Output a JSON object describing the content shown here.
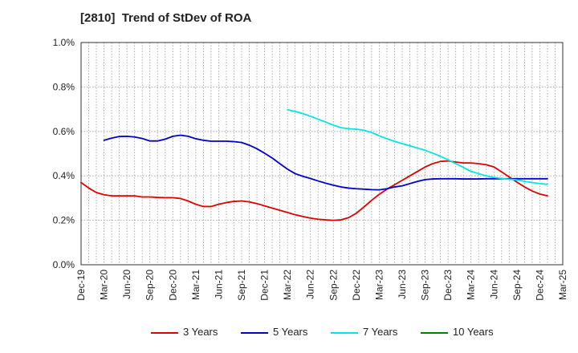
{
  "chart_data": {
    "type": "line",
    "title": "[2810]  Trend of StDev of ROA",
    "xlabel": "",
    "ylabel": "",
    "ylim": [
      0,
      1.0
    ],
    "y_ticks": [
      "0.0%",
      "0.2%",
      "0.4%",
      "0.6%",
      "0.8%",
      "1.0%"
    ],
    "x_ticks": [
      "Dec-19",
      "Mar-20",
      "Jun-20",
      "Sep-20",
      "Dec-20",
      "Mar-21",
      "Jun-21",
      "Sep-21",
      "Dec-21",
      "Mar-22",
      "Jun-22",
      "Sep-22",
      "Dec-22",
      "Mar-23",
      "Jun-23",
      "Sep-23",
      "Dec-23",
      "Mar-24",
      "Jun-24",
      "Sep-24",
      "Dec-24",
      "Mar-25"
    ],
    "grid": true,
    "legend_position": "bottom",
    "series": [
      {
        "name": "3 Years",
        "color": "#e00000",
        "points": [
          [
            "Dec-19",
            0.37
          ],
          [
            "Jan-20",
            0.345
          ],
          [
            "Feb-20",
            0.325
          ],
          [
            "Mar-20",
            0.315
          ],
          [
            "Apr-20",
            0.31
          ],
          [
            "May-20",
            0.31
          ],
          [
            "Jun-20",
            0.31
          ],
          [
            "Jul-20",
            0.31
          ],
          [
            "Aug-20",
            0.305
          ],
          [
            "Sep-20",
            0.305
          ],
          [
            "Oct-20",
            0.303
          ],
          [
            "Nov-20",
            0.302
          ],
          [
            "Dec-20",
            0.302
          ],
          [
            "Jan-21",
            0.298
          ],
          [
            "Feb-21",
            0.287
          ],
          [
            "Mar-21",
            0.272
          ],
          [
            "Apr-21",
            0.262
          ],
          [
            "May-21",
            0.262
          ],
          [
            "Jun-21",
            0.272
          ],
          [
            "Jul-21",
            0.28
          ],
          [
            "Aug-21",
            0.285
          ],
          [
            "Sep-21",
            0.287
          ],
          [
            "Oct-21",
            0.283
          ],
          [
            "Nov-21",
            0.275
          ],
          [
            "Dec-21",
            0.265
          ],
          [
            "Jan-22",
            0.255
          ],
          [
            "Feb-22",
            0.245
          ],
          [
            "Mar-22",
            0.235
          ],
          [
            "Apr-22",
            0.225
          ],
          [
            "May-22",
            0.217
          ],
          [
            "Jun-22",
            0.21
          ],
          [
            "Jul-22",
            0.205
          ],
          [
            "Aug-22",
            0.202
          ],
          [
            "Sep-22",
            0.2
          ],
          [
            "Oct-22",
            0.202
          ],
          [
            "Nov-22",
            0.212
          ],
          [
            "Dec-22",
            0.232
          ],
          [
            "Jan-23",
            0.26
          ],
          [
            "Feb-23",
            0.29
          ],
          [
            "Mar-23",
            0.317
          ],
          [
            "Apr-23",
            0.34
          ],
          [
            "May-23",
            0.36
          ],
          [
            "Jun-23",
            0.38
          ],
          [
            "Jul-23",
            0.4
          ],
          [
            "Aug-23",
            0.42
          ],
          [
            "Sep-23",
            0.44
          ],
          [
            "Oct-23",
            0.455
          ],
          [
            "Nov-23",
            0.465
          ],
          [
            "Dec-23",
            0.467
          ],
          [
            "Jan-24",
            0.462
          ],
          [
            "Feb-24",
            0.458
          ],
          [
            "Mar-24",
            0.458
          ],
          [
            "Apr-24",
            0.455
          ],
          [
            "May-24",
            0.45
          ],
          [
            "Jun-24",
            0.44
          ],
          [
            "Jul-24",
            0.418
          ],
          [
            "Aug-24",
            0.395
          ],
          [
            "Sep-24",
            0.372
          ],
          [
            "Oct-24",
            0.35
          ],
          [
            "Nov-24",
            0.332
          ],
          [
            "Dec-24",
            0.318
          ],
          [
            "Jan-25",
            0.31
          ]
        ]
      },
      {
        "name": "5 Years",
        "color": "#0000cc",
        "points": [
          [
            "Mar-20",
            0.56
          ],
          [
            "Apr-20",
            0.57
          ],
          [
            "May-20",
            0.577
          ],
          [
            "Jun-20",
            0.578
          ],
          [
            "Jul-20",
            0.575
          ],
          [
            "Aug-20",
            0.568
          ],
          [
            "Sep-20",
            0.557
          ],
          [
            "Oct-20",
            0.557
          ],
          [
            "Nov-20",
            0.565
          ],
          [
            "Dec-20",
            0.578
          ],
          [
            "Jan-21",
            0.583
          ],
          [
            "Feb-21",
            0.578
          ],
          [
            "Mar-21",
            0.567
          ],
          [
            "Apr-21",
            0.56
          ],
          [
            "May-21",
            0.556
          ],
          [
            "Jun-21",
            0.556
          ],
          [
            "Jul-21",
            0.556
          ],
          [
            "Aug-21",
            0.554
          ],
          [
            "Sep-21",
            0.55
          ],
          [
            "Oct-21",
            0.538
          ],
          [
            "Nov-21",
            0.522
          ],
          [
            "Dec-21",
            0.502
          ],
          [
            "Jan-22",
            0.48
          ],
          [
            "Feb-22",
            0.455
          ],
          [
            "Mar-22",
            0.43
          ],
          [
            "Apr-22",
            0.41
          ],
          [
            "May-22",
            0.398
          ],
          [
            "Jun-22",
            0.388
          ],
          [
            "Jul-22",
            0.377
          ],
          [
            "Aug-22",
            0.367
          ],
          [
            "Sep-22",
            0.358
          ],
          [
            "Oct-22",
            0.35
          ],
          [
            "Nov-22",
            0.345
          ],
          [
            "Dec-22",
            0.342
          ],
          [
            "Jan-23",
            0.34
          ],
          [
            "Feb-23",
            0.338
          ],
          [
            "Mar-23",
            0.337
          ],
          [
            "Apr-23",
            0.342
          ],
          [
            "May-23",
            0.35
          ],
          [
            "Jun-23",
            0.355
          ],
          [
            "Jul-23",
            0.365
          ],
          [
            "Aug-23",
            0.375
          ],
          [
            "Sep-23",
            0.383
          ],
          [
            "Oct-23",
            0.386
          ],
          [
            "Nov-23",
            0.387
          ],
          [
            "Dec-23",
            0.387
          ],
          [
            "Jan-24",
            0.387
          ],
          [
            "Feb-24",
            0.386
          ],
          [
            "Mar-24",
            0.386
          ],
          [
            "Apr-24",
            0.386
          ],
          [
            "May-24",
            0.387
          ],
          [
            "Jun-24",
            0.387
          ],
          [
            "Jul-24",
            0.387
          ],
          [
            "Aug-24",
            0.387
          ],
          [
            "Sep-24",
            0.387
          ],
          [
            "Oct-24",
            0.387
          ],
          [
            "Nov-24",
            0.387
          ],
          [
            "Dec-24",
            0.387
          ],
          [
            "Jan-25",
            0.387
          ]
        ]
      },
      {
        "name": "7 Years",
        "color": "#00e5e5",
        "points": [
          [
            "Mar-22",
            0.697
          ],
          [
            "Apr-22",
            0.69
          ],
          [
            "May-22",
            0.68
          ],
          [
            "Jun-22",
            0.668
          ],
          [
            "Jul-22",
            0.655
          ],
          [
            "Aug-22",
            0.642
          ],
          [
            "Sep-22",
            0.628
          ],
          [
            "Oct-22",
            0.617
          ],
          [
            "Nov-22",
            0.612
          ],
          [
            "Dec-22",
            0.61
          ],
          [
            "Jan-23",
            0.605
          ],
          [
            "Feb-23",
            0.595
          ],
          [
            "Mar-23",
            0.58
          ],
          [
            "Apr-23",
            0.567
          ],
          [
            "May-23",
            0.555
          ],
          [
            "Jun-23",
            0.545
          ],
          [
            "Jul-23",
            0.535
          ],
          [
            "Aug-23",
            0.525
          ],
          [
            "Sep-23",
            0.515
          ],
          [
            "Oct-23",
            0.502
          ],
          [
            "Nov-23",
            0.488
          ],
          [
            "Dec-23",
            0.472
          ],
          [
            "Jan-24",
            0.455
          ],
          [
            "Feb-24",
            0.438
          ],
          [
            "Mar-24",
            0.42
          ],
          [
            "Apr-24",
            0.41
          ],
          [
            "May-24",
            0.4
          ],
          [
            "Jun-24",
            0.393
          ],
          [
            "Jul-24",
            0.388
          ],
          [
            "Aug-24",
            0.385
          ],
          [
            "Sep-24",
            0.382
          ],
          [
            "Oct-24",
            0.375
          ],
          [
            "Nov-24",
            0.37
          ],
          [
            "Dec-24",
            0.365
          ],
          [
            "Jan-25",
            0.362
          ]
        ]
      },
      {
        "name": "10 Years",
        "color": "#008000",
        "points": []
      }
    ]
  }
}
